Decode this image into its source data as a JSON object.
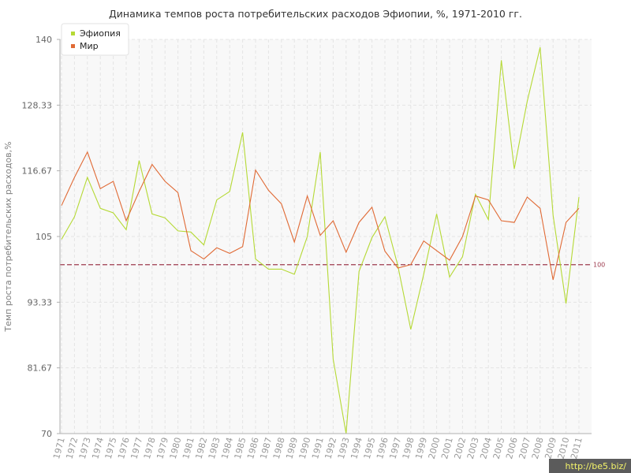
{
  "chart_data": {
    "type": "line",
    "title": "Динамика темпов роста потребительских расходов Эфиопии, %, 1971-2010 гг.",
    "xlabel": "",
    "ylabel": "Темп роста потребительских расходов,%",
    "ylim": [
      70,
      140
    ],
    "yticks": [
      "70",
      "81.67",
      "93.33",
      "105",
      "116.67",
      "128.33",
      "140"
    ],
    "x": [
      "1971",
      "1972",
      "1973",
      "1974",
      "1975",
      "1976",
      "1977",
      "1978",
      "1979",
      "1980",
      "1981",
      "1982",
      "1983",
      "1984",
      "1985",
      "1986",
      "1987",
      "1988",
      "1989",
      "1990",
      "1991",
      "1992",
      "1993",
      "1994",
      "1995",
      "1996",
      "1997",
      "1998",
      "1999",
      "2000",
      "2001",
      "2002",
      "2003",
      "2004",
      "2005",
      "2006",
      "2007",
      "2008",
      "2009",
      "2010",
      "2011"
    ],
    "series": [
      {
        "name": "Эфиопия",
        "color": "#b5d935",
        "values": [
          104.5,
          108.5,
          115.5,
          110,
          109.2,
          106.2,
          118.5,
          109,
          108.3,
          106,
          105.8,
          103.5,
          111.5,
          113,
          123.5,
          101,
          99.2,
          99.2,
          98.3,
          105,
          120,
          83.2,
          70,
          98.8,
          104.8,
          108.5,
          99.8,
          88.5,
          98.3,
          109,
          97.8,
          101.4,
          112.5,
          108,
          136.3,
          117,
          129,
          138.6,
          108.8,
          93.1,
          112
        ]
      },
      {
        "name": "Мир",
        "color": "#e06a35",
        "values": [
          110.5,
          115.5,
          120,
          113.5,
          114.8,
          107.8,
          113,
          117.8,
          114.8,
          112.8,
          102.5,
          101,
          103,
          102,
          103.2,
          116.8,
          113.2,
          110.8,
          104,
          112.2,
          105.2,
          107.8,
          102.2,
          107.5,
          110.2,
          102.4,
          99.4,
          100,
          104.2,
          102.5,
          100.8,
          105,
          112.2,
          111.5,
          107.8,
          107.5,
          112,
          110,
          97.3,
          107.5,
          110
        ]
      }
    ],
    "reference_line": {
      "value": 100,
      "label": "100",
      "color": "#9c3a4d"
    },
    "grid": true,
    "legend": "top-left"
  },
  "watermark": "http://be5.biz/"
}
